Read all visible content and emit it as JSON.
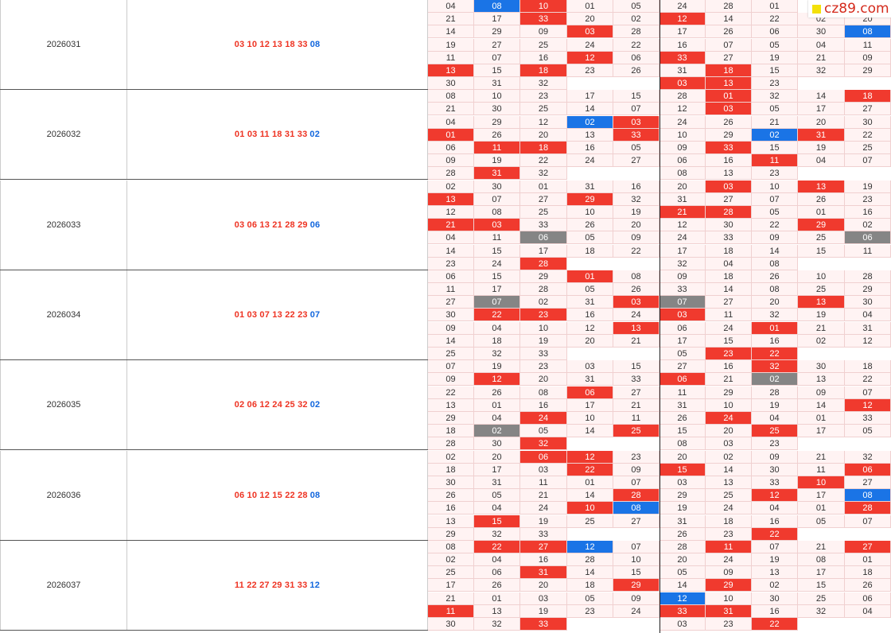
{
  "logo": {
    "text": "cz89.com"
  },
  "colors": {
    "red": "#f03a2e",
    "blue": "#1a74e6",
    "gray": "#858585",
    "cell_bg": "#fff3f3"
  },
  "rows": [
    {
      "issue": "2026031",
      "red_balls": "03 10 12 13 18 33",
      "blue_ball": "08",
      "grid": [
        [
          "04",
          "08:b",
          "10:r",
          "01",
          "05",
          "24",
          "28",
          "01",
          "",
          ""
        ],
        [
          "21",
          "17",
          "33:r",
          "20",
          "02",
          "12:r",
          "14",
          "22",
          "02",
          "20"
        ],
        [
          "14",
          "29",
          "09",
          "03:r",
          "28",
          "17",
          "26",
          "06",
          "30",
          "08:b"
        ],
        [
          "19",
          "27",
          "25",
          "24",
          "22",
          "16",
          "07",
          "05",
          "04",
          "11"
        ],
        [
          "11",
          "07",
          "16",
          "12:r",
          "06",
          "33:r",
          "27",
          "19",
          "21",
          "09"
        ],
        [
          "13:r",
          "15",
          "18:r",
          "23",
          "26",
          "31",
          "18:r",
          "15",
          "32",
          "29"
        ],
        [
          "30",
          "31",
          "32",
          "",
          "",
          "03:r",
          "13:r",
          "23",
          "",
          ""
        ]
      ]
    },
    {
      "issue": "2026032",
      "red_balls": "01 03 11 18 31 33",
      "blue_ball": "02",
      "grid": [
        [
          "08",
          "10",
          "23",
          "17",
          "15",
          "28",
          "01:r",
          "32",
          "14",
          "18:r"
        ],
        [
          "21",
          "30",
          "25",
          "14",
          "07",
          "12",
          "03:r",
          "05",
          "17",
          "27"
        ],
        [
          "04",
          "29",
          "12",
          "02:b",
          "03:r",
          "24",
          "26",
          "21",
          "20",
          "30"
        ],
        [
          "01:r",
          "26",
          "20",
          "13",
          "33:r",
          "10",
          "29",
          "02:b",
          "31:r",
          "22"
        ],
        [
          "06",
          "11:r",
          "18:r",
          "16",
          "05",
          "09",
          "33:r",
          "15",
          "19",
          "25"
        ],
        [
          "09",
          "19",
          "22",
          "24",
          "27",
          "06",
          "16",
          "11:r",
          "04",
          "07"
        ],
        [
          "28",
          "31:r",
          "32",
          "",
          "",
          "08",
          "13",
          "23",
          "",
          ""
        ]
      ]
    },
    {
      "issue": "2026033",
      "red_balls": "03 06 13 21 28 29",
      "blue_ball": "06",
      "grid": [
        [
          "02",
          "30",
          "01",
          "31",
          "16",
          "20",
          "03:r",
          "10",
          "13:r",
          "19"
        ],
        [
          "13:r",
          "07",
          "27",
          "29:r",
          "32",
          "31",
          "27",
          "07",
          "26",
          "23"
        ],
        [
          "12",
          "08",
          "25",
          "10",
          "19",
          "21:r",
          "28:r",
          "05",
          "01",
          "16"
        ],
        [
          "21:r",
          "03:r",
          "33",
          "26",
          "20",
          "12",
          "30",
          "22",
          "29:r",
          "02"
        ],
        [
          "04",
          "11",
          "06:g",
          "05",
          "09",
          "24",
          "33",
          "09",
          "25",
          "06:g"
        ],
        [
          "14",
          "15",
          "17",
          "18",
          "22",
          "17",
          "18",
          "14",
          "15",
          "11"
        ],
        [
          "23",
          "24",
          "28:r",
          "",
          "",
          "32",
          "04",
          "08",
          "",
          ""
        ]
      ]
    },
    {
      "issue": "2026034",
      "red_balls": "01 03 07 13 22 23",
      "blue_ball": "07",
      "grid": [
        [
          "06",
          "15",
          "29",
          "01:r",
          "08",
          "09",
          "18",
          "26",
          "10",
          "28"
        ],
        [
          "11",
          "17",
          "28",
          "05",
          "26",
          "33",
          "14",
          "08",
          "25",
          "29"
        ],
        [
          "27",
          "07:g",
          "02",
          "31",
          "03:r",
          "07:g",
          "27",
          "20",
          "13:r",
          "30"
        ],
        [
          "30",
          "22:r",
          "23:r",
          "16",
          "24",
          "03:r",
          "11",
          "32",
          "19",
          "04"
        ],
        [
          "09",
          "04",
          "10",
          "12",
          "13:r",
          "06",
          "24",
          "01:r",
          "21",
          "31"
        ],
        [
          "14",
          "18",
          "19",
          "20",
          "21",
          "17",
          "15",
          "16",
          "02",
          "12"
        ],
        [
          "25",
          "32",
          "33",
          "",
          "",
          "05",
          "23:r",
          "22:r",
          "",
          ""
        ]
      ]
    },
    {
      "issue": "2026035",
      "red_balls": "02 06 12 24 25 32",
      "blue_ball": "02",
      "grid": [
        [
          "07",
          "19",
          "23",
          "03",
          "15",
          "27",
          "16",
          "32:r",
          "30",
          "18"
        ],
        [
          "09",
          "12:r",
          "20",
          "31",
          "33",
          "06:r",
          "21",
          "02:g",
          "13",
          "22"
        ],
        [
          "22",
          "26",
          "08",
          "06:r",
          "27",
          "11",
          "29",
          "28",
          "09",
          "07"
        ],
        [
          "13",
          "01",
          "16",
          "17",
          "21",
          "31",
          "10",
          "19",
          "14",
          "12:r"
        ],
        [
          "29",
          "04",
          "24:r",
          "10",
          "11",
          "26",
          "24:r",
          "04",
          "01",
          "33"
        ],
        [
          "18",
          "02:g",
          "05",
          "14",
          "25:r",
          "15",
          "20",
          "25:r",
          "17",
          "05"
        ],
        [
          "28",
          "30",
          "32:r",
          "",
          "",
          "08",
          "03",
          "23",
          "",
          ""
        ]
      ]
    },
    {
      "issue": "2026036",
      "red_balls": "06 10 12 15 22 28",
      "blue_ball": "08",
      "grid": [
        [
          "02",
          "20",
          "06:r",
          "12:r",
          "23",
          "20",
          "02",
          "09",
          "21",
          "32"
        ],
        [
          "18",
          "17",
          "03",
          "22:r",
          "09",
          "15:r",
          "14",
          "30",
          "11",
          "06:r"
        ],
        [
          "30",
          "31",
          "11",
          "01",
          "07",
          "03",
          "13",
          "33",
          "10:r",
          "27"
        ],
        [
          "26",
          "05",
          "21",
          "14",
          "28:r",
          "29",
          "25",
          "12:r",
          "17",
          "08:b"
        ],
        [
          "16",
          "04",
          "24",
          "10:r",
          "08:b",
          "19",
          "24",
          "04",
          "01",
          "28:r"
        ],
        [
          "13",
          "15:r",
          "19",
          "25",
          "27",
          "31",
          "18",
          "16",
          "05",
          "07"
        ],
        [
          "29",
          "32",
          "33",
          "",
          "",
          "26",
          "23",
          "22:r",
          "",
          ""
        ]
      ]
    },
    {
      "issue": "2026037",
      "red_balls": "11 22 27 29 31 33",
      "blue_ball": "12",
      "grid": [
        [
          "08",
          "22:r",
          "27:r",
          "12:b",
          "07",
          "28",
          "11:r",
          "07",
          "21",
          "27:r"
        ],
        [
          "02",
          "04",
          "16",
          "28",
          "10",
          "20",
          "24",
          "19",
          "08",
          "01"
        ],
        [
          "25",
          "06",
          "31:r",
          "14",
          "15",
          "05",
          "09",
          "13",
          "17",
          "18"
        ],
        [
          "17",
          "26",
          "20",
          "18",
          "29:r",
          "14",
          "29:r",
          "02",
          "15",
          "26"
        ],
        [
          "21",
          "01",
          "03",
          "05",
          "09",
          "12:b",
          "10",
          "30",
          "25",
          "06"
        ],
        [
          "11:r",
          "13",
          "19",
          "23",
          "24",
          "33:r",
          "31:r",
          "16",
          "32",
          "04"
        ],
        [
          "30",
          "32",
          "33:r",
          "",
          "",
          "03",
          "23",
          "22:r",
          "",
          ""
        ]
      ]
    }
  ]
}
